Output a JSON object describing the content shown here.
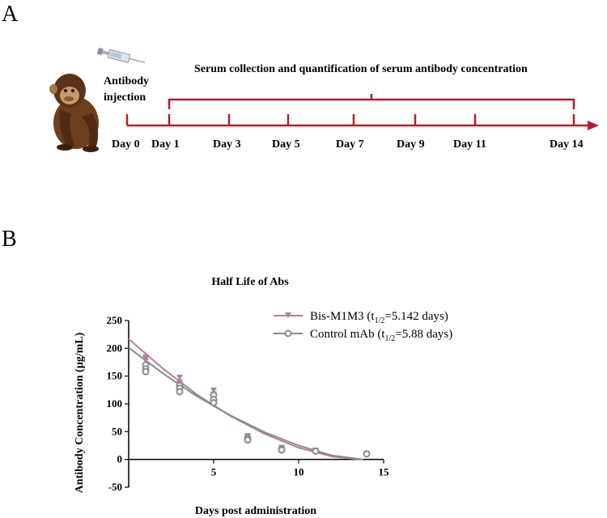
{
  "panel_a": {
    "letter": "A",
    "injection_label_line1": "Antibody",
    "injection_label_line2": "injection",
    "serum_label": "Serum collection and quantification of serum antibody concentration",
    "days": [
      "Day 0",
      "Day 1",
      "Day 3",
      "Day 5",
      "Day 7",
      "Day 9",
      "Day 11",
      "Day 14"
    ],
    "icons": [
      "chimpanzee-icon",
      "syringe-icon"
    ],
    "timeline_color": "#b0202c"
  },
  "panel_b": {
    "letter": "B"
  },
  "chart_data": {
    "type": "scatter",
    "title": "Half Life of Abs",
    "xlabel": "Days post administration",
    "ylabel": "Antibody Concentration (µg/mL)",
    "xlim": [
      0,
      15
    ],
    "ylim": [
      -50,
      250
    ],
    "xticks": [
      5,
      10,
      15
    ],
    "yticks": [
      -50,
      0,
      50,
      100,
      150,
      200,
      250
    ],
    "legend_position": "top-right",
    "series": [
      {
        "name": "Bis-M1M3",
        "legend_prefix": "Bis-M1M3 (t",
        "legend_sub": "1/2",
        "legend_suffix": "=5.142 days)",
        "color": "#b0809f",
        "marker": "triangle-down",
        "points": [
          [
            1,
            185
          ],
          [
            1,
            182
          ],
          [
            1,
            178
          ],
          [
            3,
            148
          ],
          [
            3,
            140
          ],
          [
            3,
            136
          ],
          [
            5,
            125
          ],
          [
            5,
            118
          ],
          [
            5,
            112
          ],
          [
            7,
            43
          ],
          [
            7,
            40
          ],
          [
            9,
            22
          ],
          [
            9,
            19
          ],
          [
            11,
            17
          ],
          [
            14,
            11
          ]
        ],
        "fit": [
          [
            0,
            217
          ],
          [
            2,
            164
          ],
          [
            4,
            117
          ],
          [
            6,
            78
          ],
          [
            8,
            46
          ],
          [
            10,
            21
          ],
          [
            12,
            5
          ],
          [
            13.7,
            0
          ]
        ]
      },
      {
        "name": "Control mAb",
        "legend_prefix": "Control mAb (t",
        "legend_sub": "1/2",
        "legend_suffix": "=5.88 days)",
        "color": "#8a8a8a",
        "marker": "circle-open",
        "points": [
          [
            1,
            170
          ],
          [
            1,
            163
          ],
          [
            1,
            158
          ],
          [
            3,
            133
          ],
          [
            3,
            128
          ],
          [
            3,
            122
          ],
          [
            5,
            116
          ],
          [
            5,
            108
          ],
          [
            5,
            102
          ],
          [
            7,
            38
          ],
          [
            7,
            35
          ],
          [
            9,
            19
          ],
          [
            9,
            17
          ],
          [
            11,
            15
          ],
          [
            14,
            10
          ]
        ],
        "fit": [
          [
            0,
            201
          ],
          [
            2,
            155
          ],
          [
            4,
            114
          ],
          [
            6,
            79
          ],
          [
            8,
            49
          ],
          [
            10,
            25
          ],
          [
            12,
            7
          ],
          [
            13.8,
            0
          ]
        ]
      }
    ]
  }
}
